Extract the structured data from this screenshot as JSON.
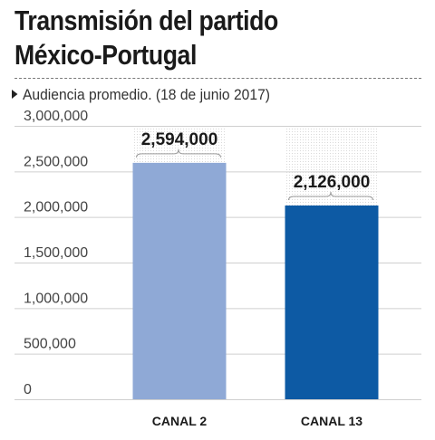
{
  "title_line1": "Transmisión del partido",
  "title_line2": "México-Portugal",
  "subtitle": "Audiencia promedio. (18 de junio 2017)",
  "colors": {
    "canal2": "#8fa9d6",
    "canal13": "#0d5aa4",
    "grid": "#cfcfcf",
    "text": "#1a1a1a"
  },
  "chart_data": {
    "type": "bar",
    "categories": [
      "CANAL 2",
      "CANAL 13"
    ],
    "values": [
      2594000,
      2126000
    ],
    "value_labels": [
      "2,594,000",
      "2,126,000"
    ],
    "y_ticks": [
      0,
      500000,
      1000000,
      1500000,
      2000000,
      2500000,
      3000000
    ],
    "y_tick_labels": [
      "0",
      "500,000",
      "1,000,000",
      "1,500,000",
      "2,000,000",
      "2,500,000",
      "3,000,000"
    ],
    "ylim": [
      0,
      3000000
    ],
    "xlabel": "",
    "ylabel": "",
    "grid": true
  }
}
